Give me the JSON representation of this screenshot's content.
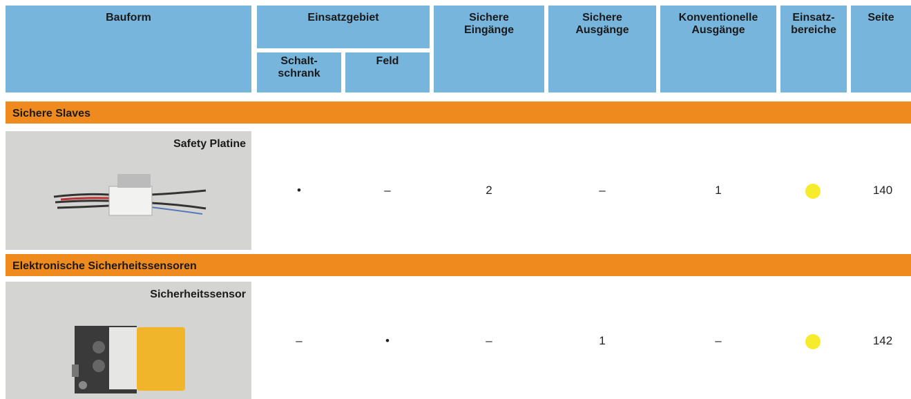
{
  "header": {
    "columns": [
      {
        "label": "Bauform"
      },
      {
        "label": "Einsatzgebiet",
        "sub": [
          {
            "label": "Schalt-\nschrank"
          },
          {
            "label": "Feld"
          }
        ]
      },
      {
        "label": "Sichere\nEingänge"
      },
      {
        "label": "Sichere\nAusgänge"
      },
      {
        "label": "Konventionelle\nAusgänge"
      },
      {
        "label": "Einsatz-\nbereiche"
      },
      {
        "label": "Seite"
      }
    ]
  },
  "sections": [
    {
      "title": "Sichere Slaves",
      "rows": [
        {
          "name": "Safety Platine",
          "cells": [
            "•",
            "–",
            "2",
            "–",
            "1",
            "140"
          ]
        }
      ]
    },
    {
      "title": "Elektronische Sicherheitssensoren",
      "rows": [
        {
          "name": "Sicherheitssensor",
          "cells": [
            "–",
            "•",
            "–",
            "1",
            "–",
            "142"
          ]
        }
      ]
    }
  ]
}
